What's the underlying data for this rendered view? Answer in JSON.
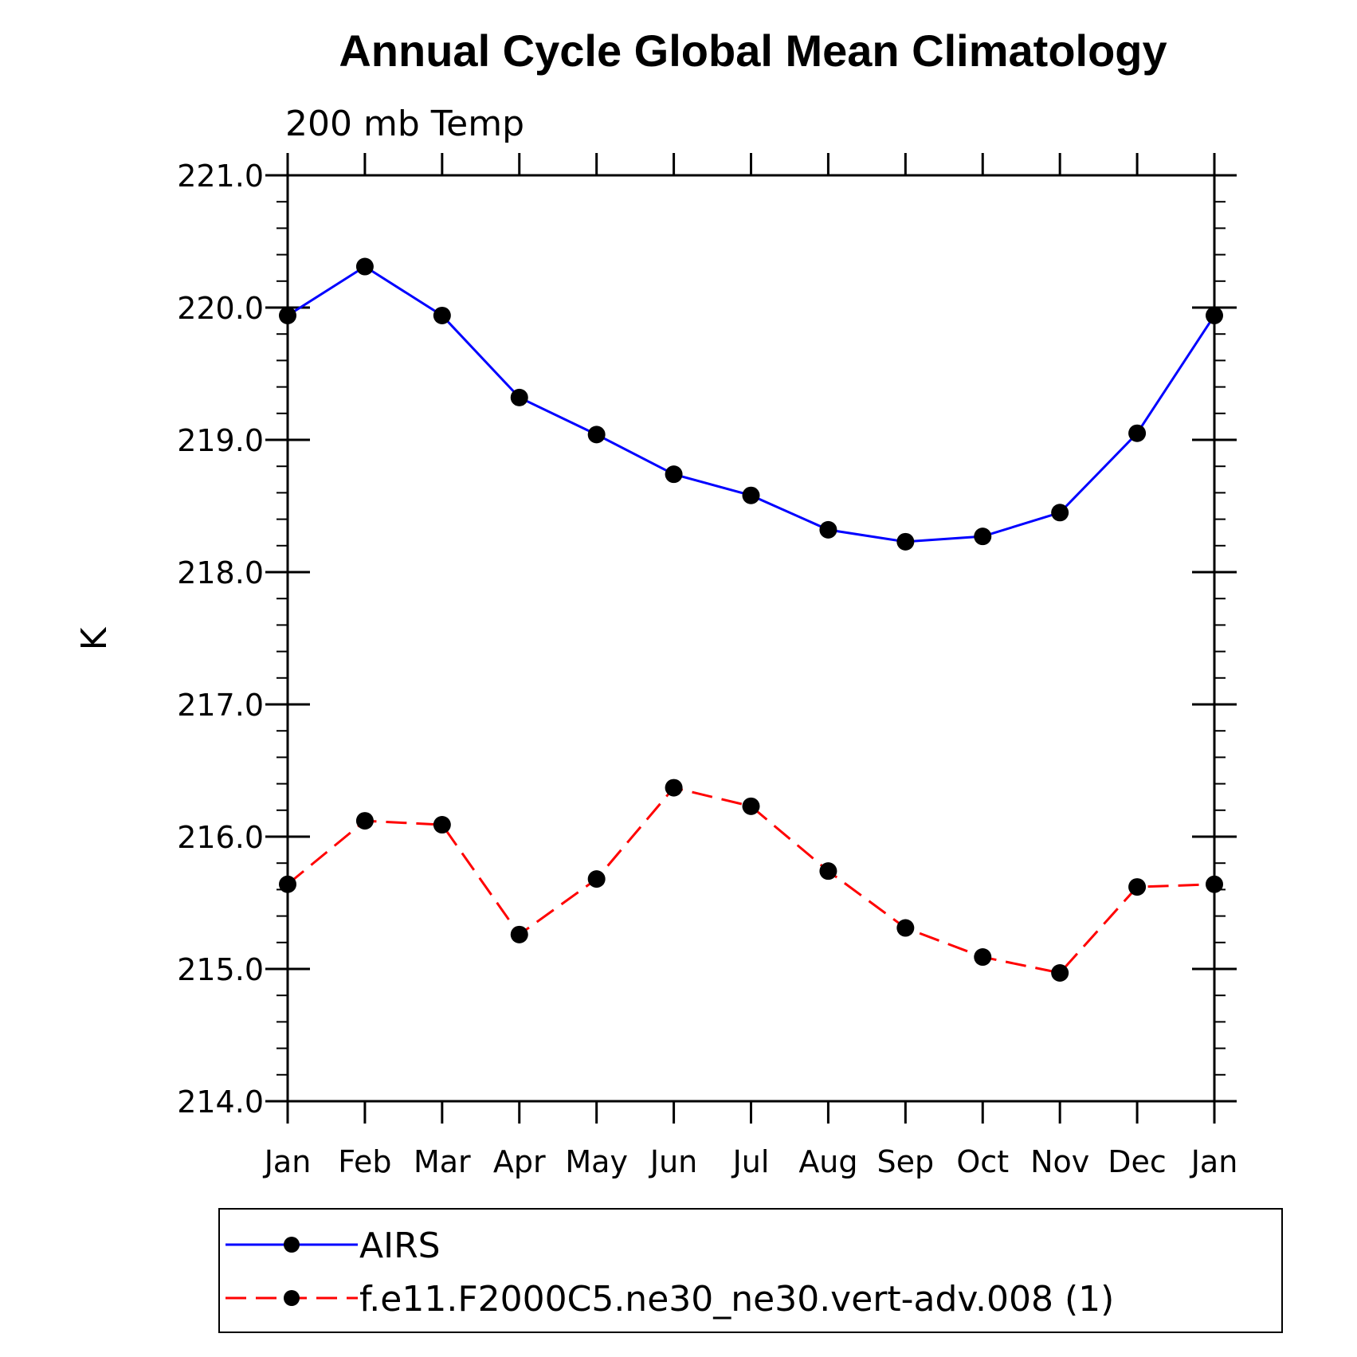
{
  "chart_data": {
    "type": "line",
    "title": "Annual Cycle Global Mean Climatology",
    "subtitle": "200 mb Temp",
    "ylabel": "K",
    "xlabel": "",
    "categories": [
      "Jan",
      "Feb",
      "Mar",
      "Apr",
      "May",
      "Jun",
      "Jul",
      "Aug",
      "Sep",
      "Oct",
      "Nov",
      "Dec",
      "Jan"
    ],
    "ylim": [
      214.0,
      221.0
    ],
    "yticks": [
      "214.0",
      "215.0",
      "216.0",
      "217.0",
      "218.0",
      "219.0",
      "220.0",
      "221.0"
    ],
    "grid": false,
    "legend_position": "bottom",
    "series": [
      {
        "name": "AIRS",
        "color": "#0000ff",
        "dash": "solid",
        "values": [
          219.94,
          220.31,
          219.94,
          219.32,
          219.04,
          218.74,
          218.58,
          218.32,
          218.23,
          218.27,
          218.45,
          219.05,
          219.94
        ]
      },
      {
        "name": "f.e11.F2000C5.ne30_ne30.vert-adv.008 (1)",
        "color": "#ff0000",
        "dash": "dashed",
        "values": [
          215.64,
          216.12,
          216.09,
          215.26,
          215.68,
          216.37,
          216.23,
          215.74,
          215.31,
          215.09,
          214.97,
          215.62,
          215.64
        ]
      }
    ]
  }
}
